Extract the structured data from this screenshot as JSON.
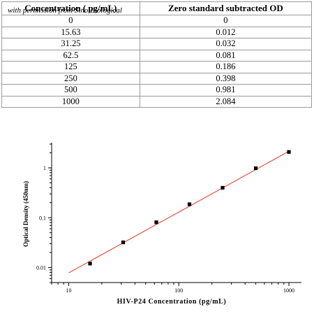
{
  "table": {
    "headers": [
      "Concentration ( pg/mL)",
      "Zero standard subtracted OD"
    ],
    "watermark": "with permission from Sino Biological",
    "rows": [
      [
        "0",
        "0"
      ],
      [
        "15.63",
        "0.012"
      ],
      [
        "31.25",
        "0.032"
      ],
      [
        "62.5",
        "0.081"
      ],
      [
        "125",
        "0.186"
      ],
      [
        "250",
        "0.398"
      ],
      [
        "500",
        "0.981"
      ],
      [
        "1000",
        "2.084"
      ]
    ]
  },
  "chart_data": {
    "type": "scatter",
    "xlabel": "HIV-P24 Concentration (pg/mL)",
    "ylabel": "Optical Density (450nm)",
    "x_scale": "log",
    "y_scale": "log",
    "xlim": [
      7,
      1300
    ],
    "ylim": [
      0.005,
      3.2
    ],
    "x_ticks": [
      "10",
      "100",
      "1000"
    ],
    "y_ticks": [
      "0.01",
      "0.1",
      "1"
    ],
    "x": [
      15.63,
      31.25,
      62.5,
      125,
      250,
      500,
      1000
    ],
    "y": [
      0.012,
      0.032,
      0.081,
      0.186,
      0.398,
      0.981,
      2.084
    ],
    "fit_line": {
      "x": [
        10,
        1000
      ],
      "y": [
        0.0078,
        2.15
      ]
    },
    "grid": false,
    "colors": {
      "points": "#000000",
      "fit": "#e0392b",
      "axis": "#000000"
    }
  }
}
